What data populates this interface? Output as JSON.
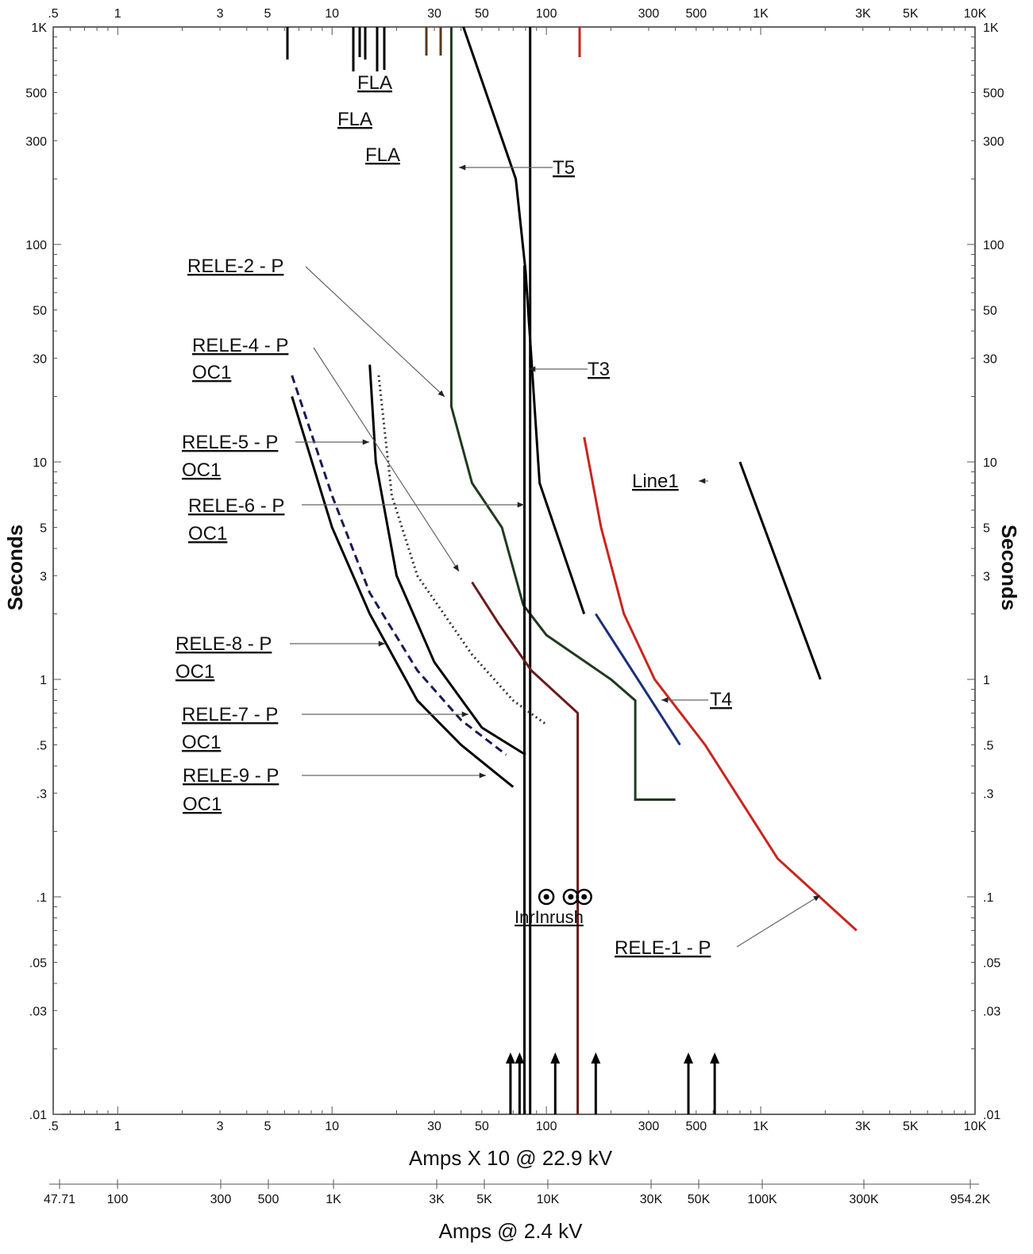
{
  "chart_data": {
    "type": "line",
    "title": "",
    "xlabel": "Amps  X  10 @ 22.9 kV",
    "xlabel2": "Amps @ 2.4 kV",
    "ylabel": "Seconds",
    "ylabel_right": "Seconds",
    "xscale": "log",
    "yscale": "log",
    "xlim": [
      0.5,
      10000
    ],
    "ylim": [
      0.01,
      1000
    ],
    "x_ticks": [
      ".5",
      "1",
      "3",
      "5",
      "10",
      "30",
      "50",
      "100",
      "300",
      "500",
      "1K",
      "3K",
      "5K",
      "10K"
    ],
    "y_ticks": [
      "1K",
      "500",
      "300",
      "100",
      "50",
      "30",
      "10",
      "5",
      "3",
      "1",
      ".5",
      ".3",
      ".1",
      ".05",
      ".03",
      ".01"
    ],
    "x2_ticks": [
      "47.71",
      "100",
      "300",
      "500",
      "1K",
      "3K",
      "5K",
      "10K",
      "30K",
      "50K",
      "100K",
      "300K",
      "954.2K"
    ],
    "grid": false,
    "curve_labels": [
      {
        "id": "fla1",
        "text": "FLA"
      },
      {
        "id": "fla2",
        "text": "FLA"
      },
      {
        "id": "fla3",
        "text": "FLA"
      },
      {
        "id": "t5",
        "text": "T5"
      },
      {
        "id": "rele2",
        "text": "RELE-2 - P"
      },
      {
        "id": "rele4",
        "text": "RELE-4 - P"
      },
      {
        "id": "rele4oc",
        "text": "OC1"
      },
      {
        "id": "t3",
        "text": "T3"
      },
      {
        "id": "rele5",
        "text": "RELE-5 - P"
      },
      {
        "id": "rele5oc",
        "text": "OC1"
      },
      {
        "id": "line1",
        "text": "Line1"
      },
      {
        "id": "rele6",
        "text": "RELE-6 - P"
      },
      {
        "id": "rele6oc",
        "text": "OC1"
      },
      {
        "id": "rele8",
        "text": "RELE-8 - P"
      },
      {
        "id": "rele8oc",
        "text": "OC1"
      },
      {
        "id": "t4",
        "text": "T4"
      },
      {
        "id": "rele7",
        "text": "RELE-7 - P"
      },
      {
        "id": "rele7oc",
        "text": "OC1"
      },
      {
        "id": "rele9",
        "text": "RELE-9 - P"
      },
      {
        "id": "rele9oc",
        "text": "OC1"
      },
      {
        "id": "inrush",
        "text": "InrInrush"
      },
      {
        "id": "rele1",
        "text": "RELE-1 - P"
      }
    ],
    "series": [
      {
        "id": "T5",
        "color": "#000000",
        "x": [
          41,
          72,
          80,
          93,
          150
        ],
        "y": [
          1000,
          200,
          75,
          8,
          2
        ]
      },
      {
        "id": "RELE-2-P",
        "color": "#1f3a1f",
        "x": [
          36,
          36,
          36,
          45,
          62,
          78,
          100,
          200,
          260,
          260,
          400
        ],
        "y": [
          1000,
          200,
          18,
          8,
          5,
          2.2,
          1.6,
          1,
          0.8,
          0.28,
          0.28
        ]
      },
      {
        "id": "T3",
        "color": "#000000",
        "x": [
          79,
          79,
          79,
          79
        ],
        "y": [
          80,
          7,
          0.5,
          0.01
        ]
      },
      {
        "id": "T3-vertical",
        "color": "#000000",
        "x": [
          84,
          84
        ],
        "y": [
          1000,
          0.01
        ]
      },
      {
        "id": "T4",
        "color": "#1a2f7a",
        "x": [
          170,
          420
        ],
        "y": [
          2,
          0.5
        ]
      },
      {
        "id": "RELE-1-P",
        "color": "#c8261e",
        "x": [
          150,
          180,
          230,
          320,
          550,
          1200,
          2800
        ],
        "y": [
          13,
          5,
          2,
          1,
          0.5,
          0.15,
          0.07
        ]
      },
      {
        "id": "Line1",
        "color": "#000000",
        "x": [
          800,
          1900
        ],
        "y": [
          10,
          1
        ]
      },
      {
        "id": "RELE-4-P",
        "color": "#6b1a1a",
        "x": [
          45,
          60,
          85,
          140,
          140
        ],
        "y": [
          2.8,
          1.8,
          1.1,
          0.7,
          0.01
        ]
      },
      {
        "id": "RELE-5-P",
        "color": "#000000",
        "x": [
          15,
          16,
          20,
          30,
          50,
          80
        ],
        "y": [
          28,
          10,
          3,
          1.2,
          0.6,
          0.45
        ]
      },
      {
        "id": "RELE-6-P",
        "color": "#333333",
        "x": [
          16.5,
          19,
          25,
          45,
          70,
          100
        ],
        "y": [
          25,
          7,
          3,
          1.3,
          0.8,
          0.62
        ]
      },
      {
        "id": "RELE-8-P",
        "color": "#1a1a55",
        "x": [
          6.5,
          10,
          15,
          25,
          40,
          65
        ],
        "y": [
          25,
          7,
          2.5,
          1.1,
          0.65,
          0.45
        ]
      },
      {
        "id": "RELE-9-P",
        "color": "#000000",
        "x": [
          6.5,
          10,
          15,
          25,
          40,
          70
        ],
        "y": [
          20,
          5,
          2,
          0.8,
          0.5,
          0.32
        ]
      }
    ],
    "arrows_bottom_x": [
      68,
      75,
      110,
      170,
      460,
      610
    ],
    "inrush_points_x": [
      100,
      130,
      150
    ]
  }
}
